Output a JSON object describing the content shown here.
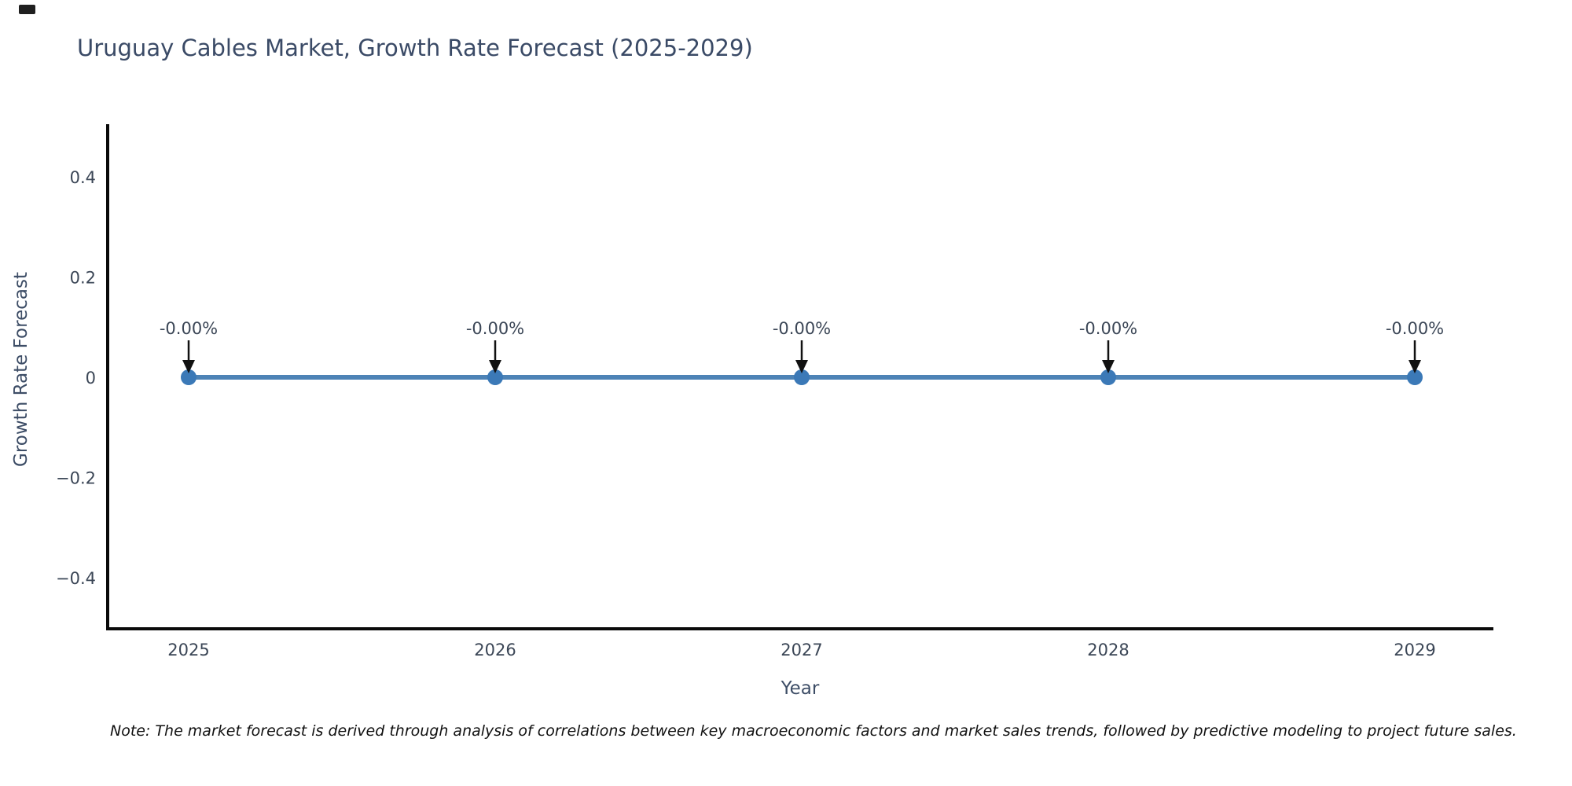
{
  "note": "Note: The market forecast is derived through analysis of correlations between key macroeconomic factors and market sales trends, followed by predictive modeling to project future sales.",
  "chart_data": {
    "type": "line",
    "title": "Uruguay Cables Market, Growth Rate Forecast (2025-2029)",
    "xlabel": "Year",
    "ylabel": "Growth Rate Forecast",
    "x": [
      2025,
      2026,
      2027,
      2028,
      2029
    ],
    "xtick_labels": [
      "2025",
      "2026",
      "2027",
      "2028",
      "2029"
    ],
    "series": [
      {
        "name": "Growth Rate Forecast",
        "values": [
          0,
          0,
          0,
          0,
          0
        ],
        "point_labels": [
          "-0.00%",
          "-0.00%",
          "-0.00%",
          "-0.00%",
          "-0.00%"
        ]
      }
    ],
    "yticks": [
      0.4,
      0.2,
      0,
      -0.2,
      -0.4
    ],
    "ytick_labels": [
      "0.4",
      "0.2",
      "0",
      "−0.2",
      "−0.4"
    ],
    "ylim": [
      -0.5,
      0.5
    ],
    "grid": false,
    "legend": "none",
    "annotation_style": "value label above each point with downward black arrow",
    "colors": {
      "line": "#4d83b6",
      "marker": "#3b79b7",
      "arrow": "#111111",
      "axis": "#0a0a0a",
      "text": "#3b4656",
      "title_text": "#3a4a66"
    }
  }
}
